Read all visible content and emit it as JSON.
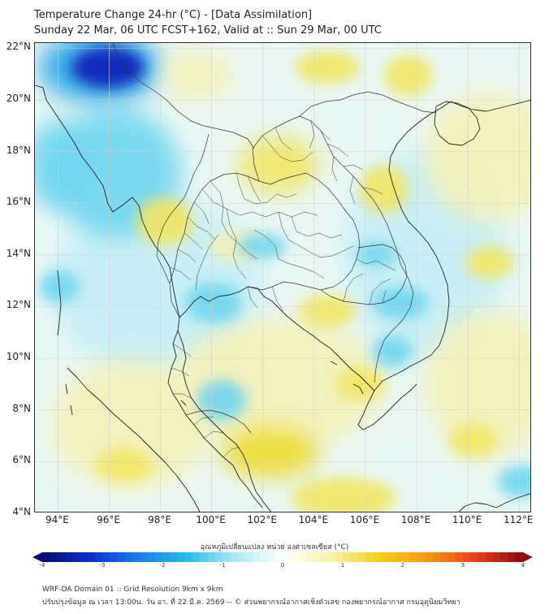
{
  "title": {
    "line1": "Temperature Change 24-hr (°C) - [Data Assimilation]",
    "line2": "Sunday 22 Mar, 06 UTC FCST+162, Valid at :: Sun 29 Mar, 00 UTC"
  },
  "map": {
    "lat_ticks": [
      {
        "value": 22,
        "label": "22°N"
      },
      {
        "value": 20,
        "label": "20°N"
      },
      {
        "value": 18,
        "label": "18°N"
      },
      {
        "value": 16,
        "label": "16°N"
      },
      {
        "value": 14,
        "label": "14°N"
      },
      {
        "value": 12,
        "label": "12°N"
      },
      {
        "value": 10,
        "label": "10°N"
      },
      {
        "value": 8,
        "label": "8°N"
      },
      {
        "value": 6,
        "label": "6°N"
      },
      {
        "value": 4,
        "label": "4°N"
      }
    ],
    "lon_ticks": [
      {
        "value": 94,
        "label": "94°E"
      },
      {
        "value": 96,
        "label": "96°E"
      },
      {
        "value": 98,
        "label": "98°E"
      },
      {
        "value": 100,
        "label": "100°E"
      },
      {
        "value": 102,
        "label": "102°E"
      },
      {
        "value": 104,
        "label": "104°E"
      },
      {
        "value": 106,
        "label": "106°E"
      },
      {
        "value": 108,
        "label": "108°E"
      },
      {
        "value": 110,
        "label": "110°E"
      },
      {
        "value": 112,
        "label": "112°E"
      }
    ],
    "lat_range": [
      4,
      22.2
    ],
    "lon_range": [
      93.1,
      112.5
    ]
  },
  "colorbar": {
    "title": "อุณหภูมิเปลี่ยนแปลง หน่วย องศาเซลเซียส (°C)",
    "ticks": [
      {
        "value": -4,
        "label": "-4"
      },
      {
        "value": -3,
        "label": "-3"
      },
      {
        "value": -2,
        "label": "-2"
      },
      {
        "value": -1,
        "label": "-1"
      },
      {
        "value": 0,
        "label": "0"
      },
      {
        "value": 1,
        "label": "1"
      },
      {
        "value": 2,
        "label": "2"
      },
      {
        "value": 3,
        "label": "3"
      },
      {
        "value": 4,
        "label": "4"
      }
    ],
    "range": [
      -4,
      4
    ],
    "colors": [
      "#0a0a6e",
      "#0c2fcf",
      "#1b7ee8",
      "#28bde8",
      "#a8eaf5",
      "#ffffff",
      "#f7f2a8",
      "#f2d21a",
      "#f59a12",
      "#e8421a",
      "#8a0a12"
    ]
  },
  "footer": {
    "line1": "WRF-DA Domain 01 :: Grid Resolution 9km x 9km",
    "line2": "ปรับปรุงข้อมูล ณ เวลา 13:00น. วัน อา. ที่ 22 มี.ค. 2569 -- © ส่วนพยากรณ์อากาศเชิงตัวเลข กองพยากรณ์อากาศ กรมอุตุนิยมวิทยา"
  },
  "colors": {
    "deep_blue": "#0a1fb8",
    "blue": "#2aa8e6",
    "cyan": "#6fd6f0",
    "light_cyan": "#c6eff7",
    "pale_yellow": "#f5f1b8",
    "yellow": "#f1e662",
    "strong_yellow": "#eeda2a",
    "coast": "#222222",
    "border": "#333333",
    "grid": "#d0d0d0"
  }
}
